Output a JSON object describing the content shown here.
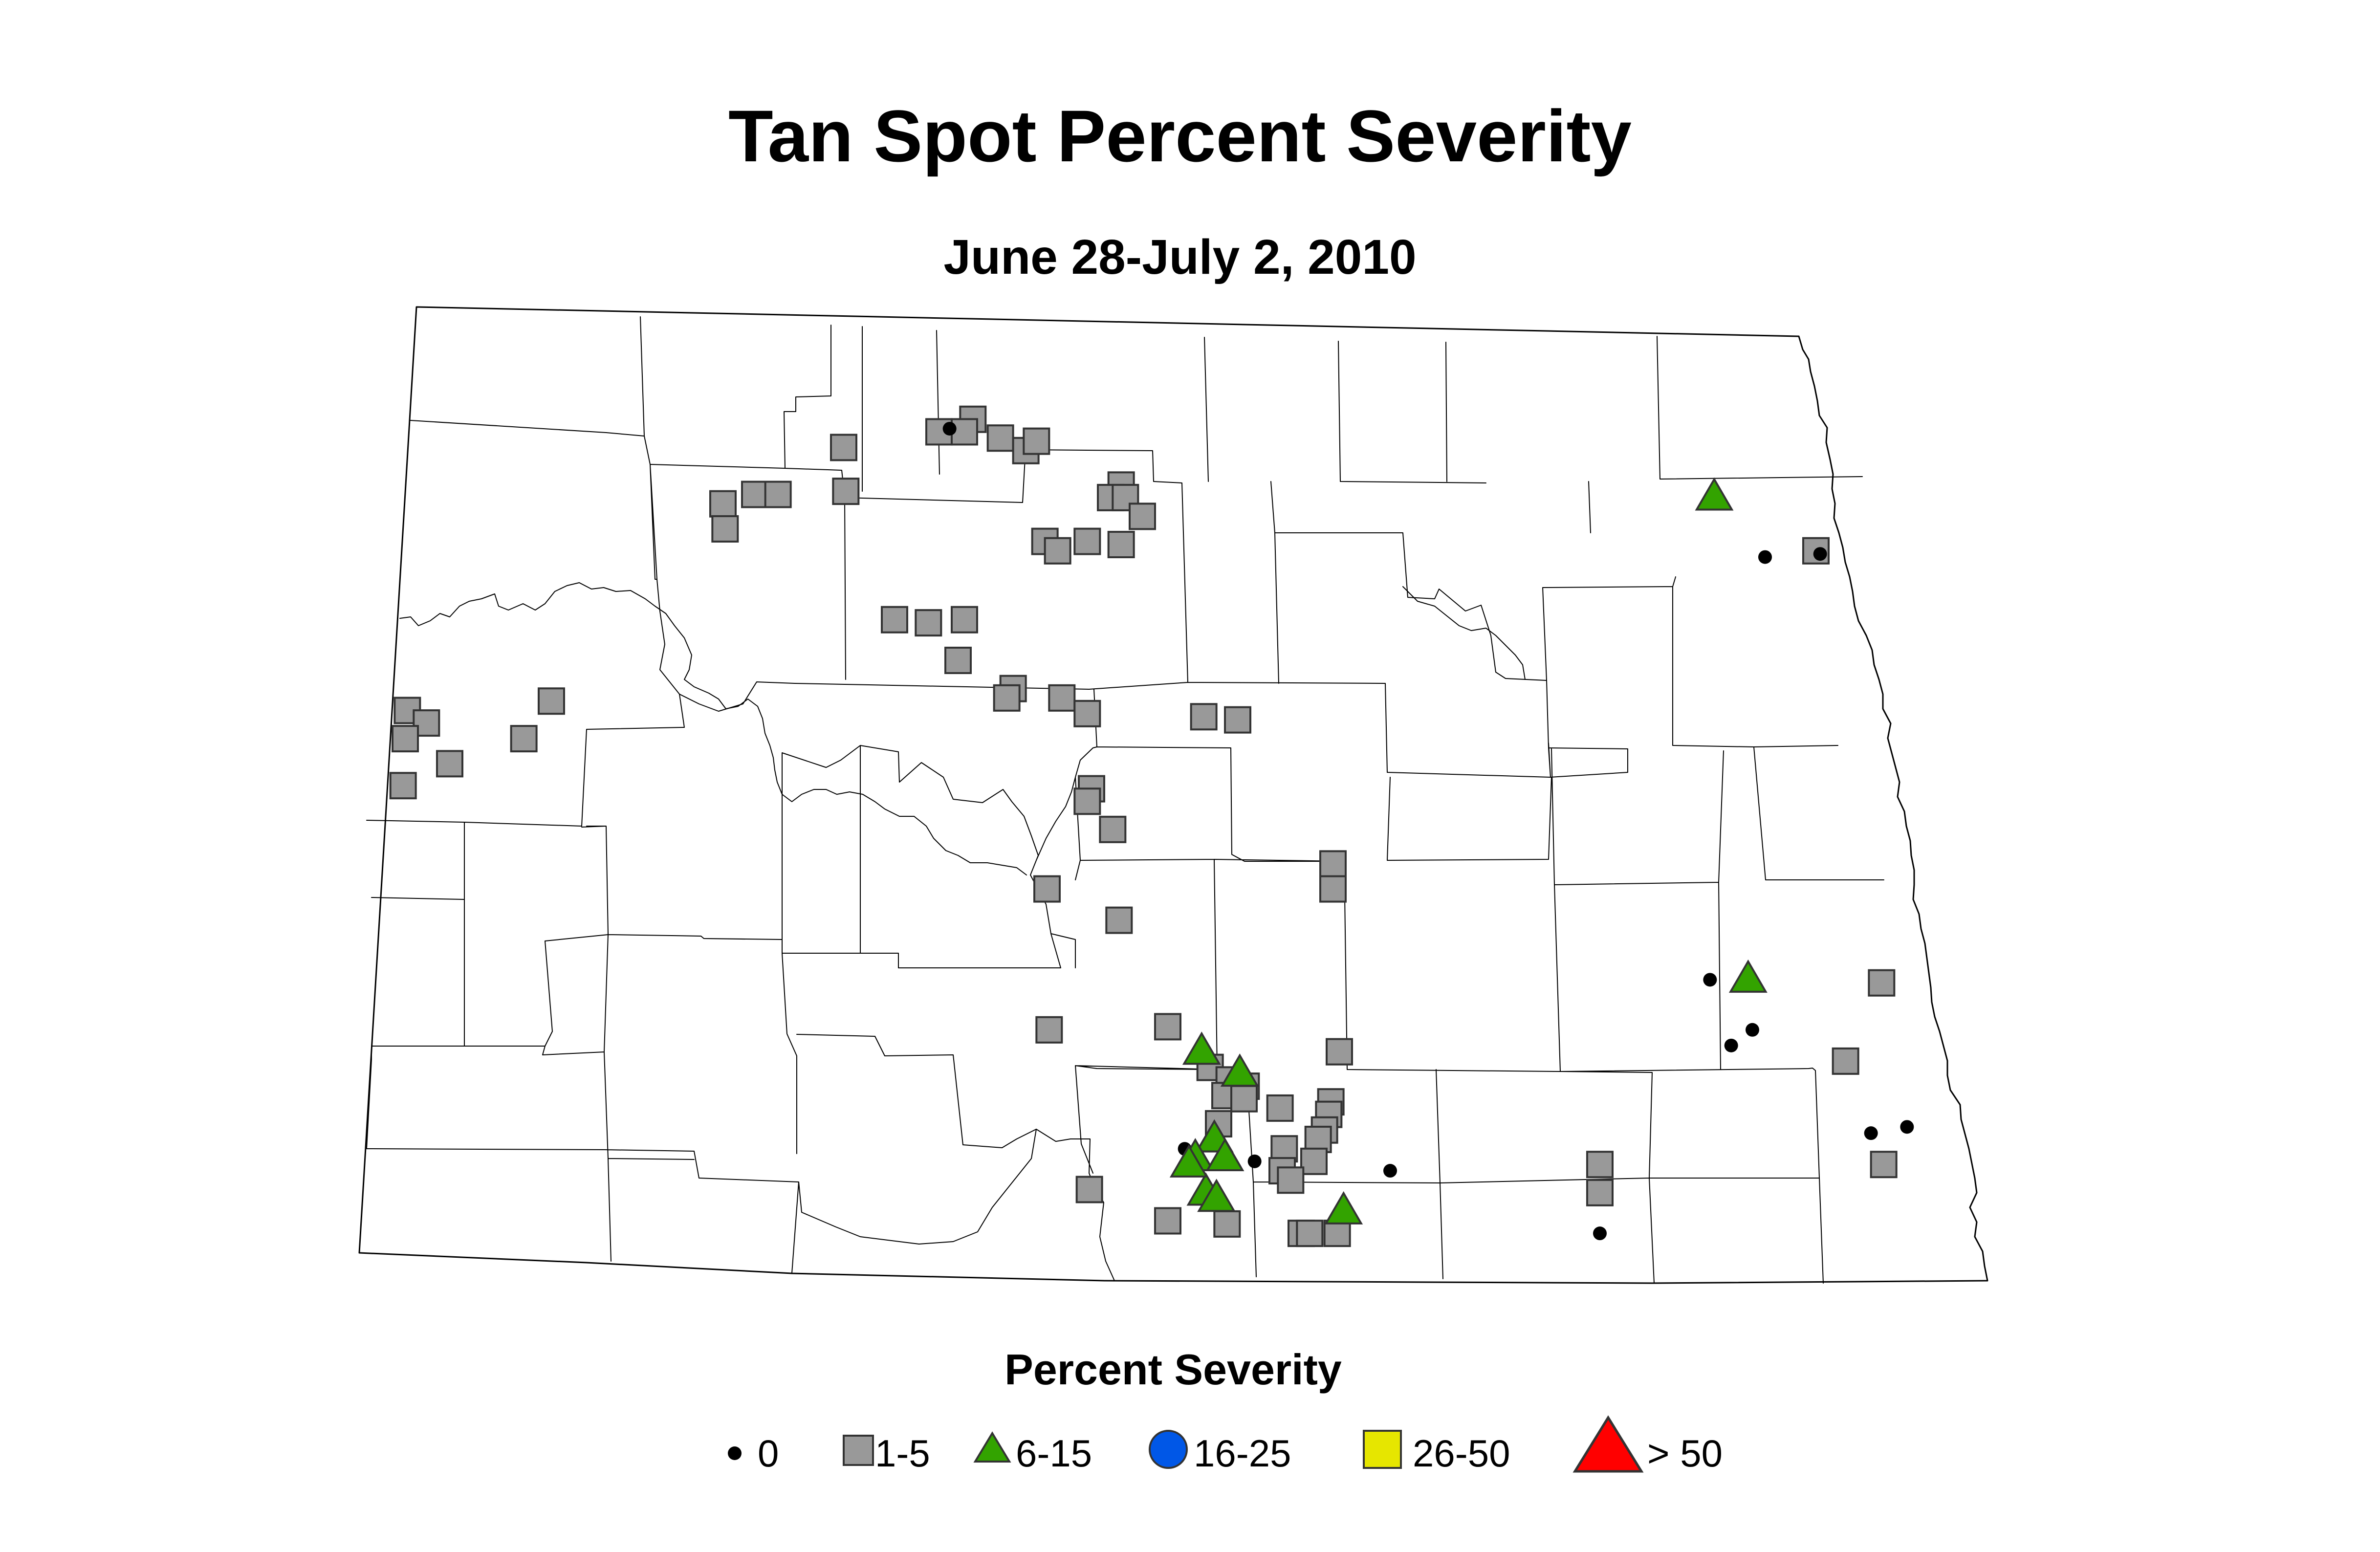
{
  "title": "Tan Spot Percent Severity",
  "subtitle": "June 28-July 2, 2010",
  "legend": {
    "title": "Percent Severity",
    "items": [
      {
        "label": "0",
        "symbol": "dot-icon",
        "color": "#000000"
      },
      {
        "label": "1-5",
        "symbol": "square-icon",
        "color": "#999999"
      },
      {
        "label": "6-15",
        "symbol": "triangle-icon",
        "color": "#33a300"
      },
      {
        "label": "16-25",
        "symbol": "circle-icon",
        "color": "#0057e7"
      },
      {
        "label": "26-50",
        "symbol": "square-icon",
        "color": "#e6e600"
      },
      {
        "label": "> 50",
        "symbol": "triangle-icon",
        "color": "#ff0000"
      }
    ]
  },
  "chart_data": {
    "type": "scatter",
    "series": [
      {
        "name": "0",
        "symbol": "dot",
        "color": "#000000",
        "points": [
          [
            -101.39,
            48.63
          ],
          [
            -97.54,
            48.22
          ],
          [
            -97.28,
            48.23
          ],
          [
            -97.8,
            46.87
          ],
          [
            -97.7,
            46.66
          ],
          [
            -97.6,
            46.71
          ],
          [
            -97.04,
            46.38
          ],
          [
            -96.87,
            46.4
          ],
          [
            -100.28,
            46.33
          ],
          [
            -99.95,
            46.29
          ],
          [
            -99.31,
            46.26
          ],
          [
            -98.32,
            46.06
          ]
        ]
      },
      {
        "name": "1-5",
        "symbol": "square",
        "color": "#999999",
        "points": [
          [
            -101.89,
            48.57
          ],
          [
            -101.44,
            48.62
          ],
          [
            -101.28,
            48.66
          ],
          [
            -101.32,
            48.62
          ],
          [
            -101.15,
            48.6
          ],
          [
            -101.03,
            48.56
          ],
          [
            -100.98,
            48.59
          ],
          [
            -102.46,
            48.39
          ],
          [
            -102.31,
            48.42
          ],
          [
            -102.2,
            48.42
          ],
          [
            -101.88,
            48.43
          ],
          [
            -102.45,
            48.31
          ],
          [
            -100.58,
            48.45
          ],
          [
            -100.63,
            48.41
          ],
          [
            -100.56,
            48.41
          ],
          [
            -100.48,
            48.35
          ],
          [
            -100.94,
            48.27
          ],
          [
            -100.88,
            48.24
          ],
          [
            -100.74,
            48.27
          ],
          [
            -100.58,
            48.26
          ],
          [
            -101.65,
            48.02
          ],
          [
            -101.49,
            48.01
          ],
          [
            -101.32,
            48.02
          ],
          [
            -101.35,
            47.89
          ],
          [
            -101.09,
            47.8
          ],
          [
            -101.12,
            47.77
          ],
          [
            -100.86,
            47.77
          ],
          [
            -100.74,
            47.72
          ],
          [
            -100.19,
            47.71
          ],
          [
            -100.03,
            47.7
          ],
          [
            -103.95,
            47.73
          ],
          [
            -103.86,
            47.69
          ],
          [
            -103.96,
            47.64
          ],
          [
            -103.75,
            47.56
          ],
          [
            -103.97,
            47.49
          ],
          [
            -103.27,
            47.76
          ],
          [
            -103.4,
            47.64
          ],
          [
            -100.72,
            47.48
          ],
          [
            -100.74,
            47.44
          ],
          [
            -100.62,
            47.35
          ],
          [
            -100.93,
            47.16
          ],
          [
            -100.59,
            47.06
          ],
          [
            -99.58,
            47.24
          ],
          [
            -99.58,
            47.16
          ],
          [
            -100.92,
            46.71
          ],
          [
            -100.36,
            46.72
          ],
          [
            -100.16,
            46.59
          ],
          [
            -100.07,
            46.55
          ],
          [
            -100.09,
            46.5
          ],
          [
            -100.12,
            46.41
          ],
          [
            -99.99,
            46.53
          ],
          [
            -100.0,
            46.49
          ],
          [
            -99.83,
            46.46
          ],
          [
            -99.55,
            46.64
          ],
          [
            -99.59,
            46.48
          ],
          [
            -99.6,
            46.44
          ],
          [
            -99.62,
            46.39
          ],
          [
            -99.65,
            46.36
          ],
          [
            -99.67,
            46.29
          ],
          [
            -99.81,
            46.33
          ],
          [
            -99.82,
            46.26
          ],
          [
            -99.78,
            46.23
          ],
          [
            -100.73,
            46.2
          ],
          [
            -100.36,
            46.1
          ],
          [
            -100.08,
            46.09
          ],
          [
            -99.73,
            46.06
          ],
          [
            -99.69,
            46.06
          ],
          [
            -99.56,
            46.06
          ],
          [
            -98.32,
            46.28
          ],
          [
            -98.32,
            46.19
          ],
          [
            -97.3,
            48.24
          ],
          [
            -96.99,
            46.86
          ],
          [
            -97.16,
            46.61
          ],
          [
            -96.98,
            46.28
          ]
        ]
      },
      {
        "name": "6-15",
        "symbol": "triangle",
        "color": "#33a300",
        "points": [
          [
            -97.78,
            48.42
          ],
          [
            -97.62,
            46.88
          ],
          [
            -100.2,
            46.65
          ],
          [
            -100.02,
            46.58
          ],
          [
            -100.14,
            46.37
          ],
          [
            -100.23,
            46.31
          ],
          [
            -100.09,
            46.31
          ],
          [
            -100.18,
            46.2
          ],
          [
            -100.13,
            46.18
          ],
          [
            -99.53,
            46.14
          ],
          [
            -100.26,
            46.29
          ]
        ]
      },
      {
        "name": "16-25",
        "symbol": "circle",
        "color": "#0057e7",
        "points": []
      },
      {
        "name": "26-50",
        "symbol": "square",
        "color": "#e6e600",
        "points": []
      },
      {
        "name": "> 50",
        "symbol": "triangle",
        "color": "#ff0000",
        "points": []
      }
    ]
  }
}
